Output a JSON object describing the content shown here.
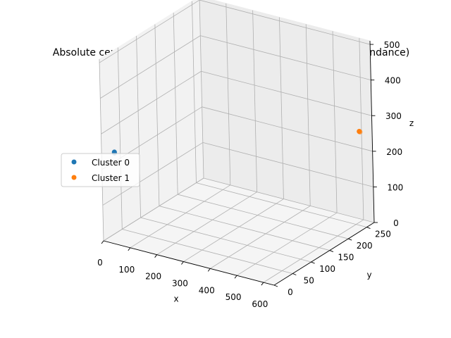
{
  "chart_data": {
    "type": "scatter",
    "projection": "3d",
    "title": "Absolute center of mass of clusters (residue for cluster correspondance)",
    "xlabel": "x",
    "ylabel": "y",
    "zlabel": "z",
    "xlim": [
      0,
      640
    ],
    "ylim": [
      0,
      270
    ],
    "zlim": [
      0,
      510
    ],
    "xticks": [
      "0",
      "100",
      "200",
      "300",
      "400",
      "500",
      "600"
    ],
    "yticks": [
      "0",
      "50",
      "100",
      "150",
      "200",
      "250"
    ],
    "zticks": [
      "0",
      "100",
      "200",
      "300",
      "400",
      "500"
    ],
    "grid": true,
    "legend_position": "center-left",
    "series": [
      {
        "name": "Cluster 0",
        "color": "#1f77b4",
        "points": [
          [
            20,
            20,
            240
          ],
          [
            22,
            19,
            238
          ]
        ]
      },
      {
        "name": "Cluster 1",
        "color": "#ff7f0e",
        "points": [
          [
            620,
            250,
            265
          ],
          [
            620,
            252,
            262
          ]
        ]
      }
    ]
  }
}
